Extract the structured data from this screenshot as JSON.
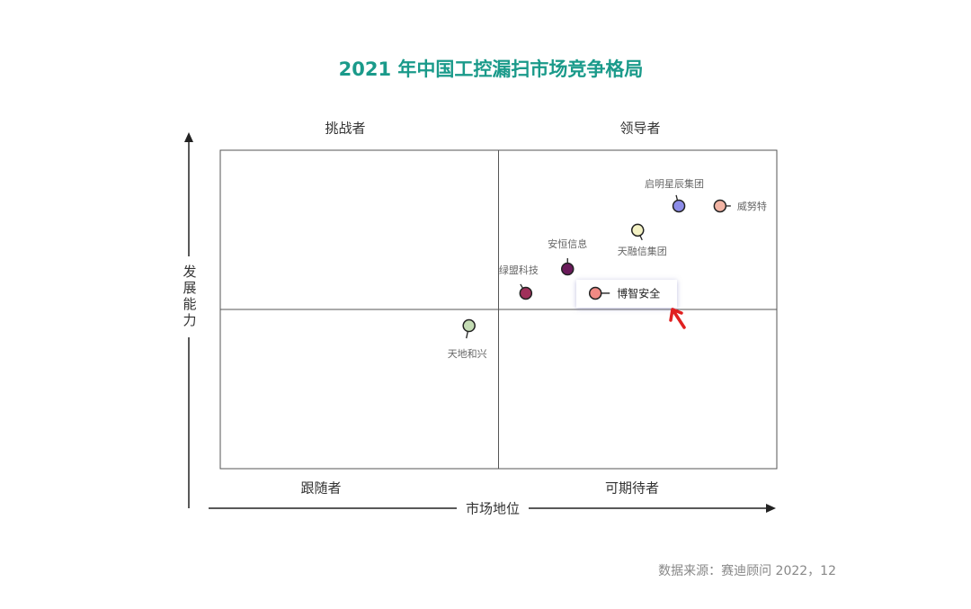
{
  "chart_data": {
    "type": "scatter",
    "title": "2021 年中国工控漏扫市场竞争格局",
    "x_label": "市场地位",
    "y_label": "发展能力",
    "quadrants": [
      "挑战者",
      "领导者",
      "跟随者",
      "可期待者"
    ],
    "xlim": [
      0,
      100
    ],
    "ylim": [
      0,
      100
    ],
    "points": [
      {
        "name": "启明星辰集团",
        "x": 82.4,
        "y": 82.5,
        "color": "#8c8ce8"
      },
      {
        "name": "威努特",
        "x": 89.8,
        "y": 82.5,
        "color": "#f2b4a4"
      },
      {
        "name": "天融信集团",
        "x": 75.0,
        "y": 74.9,
        "color": "#f4f2c4"
      },
      {
        "name": "安恒信息",
        "x": 62.4,
        "y": 62.7,
        "color": "#6a1a5a"
      },
      {
        "name": "绿盟科技",
        "x": 54.9,
        "y": 55.1,
        "color": "#a0305a"
      },
      {
        "name": "博智安全",
        "x": 67.4,
        "y": 55.1,
        "color": "#f08a84"
      },
      {
        "name": "天地和兴",
        "x": 44.7,
        "y": 44.9,
        "color": "#c4dcb4"
      }
    ],
    "source": "数据来源：赛迪顾问  2022，12"
  }
}
